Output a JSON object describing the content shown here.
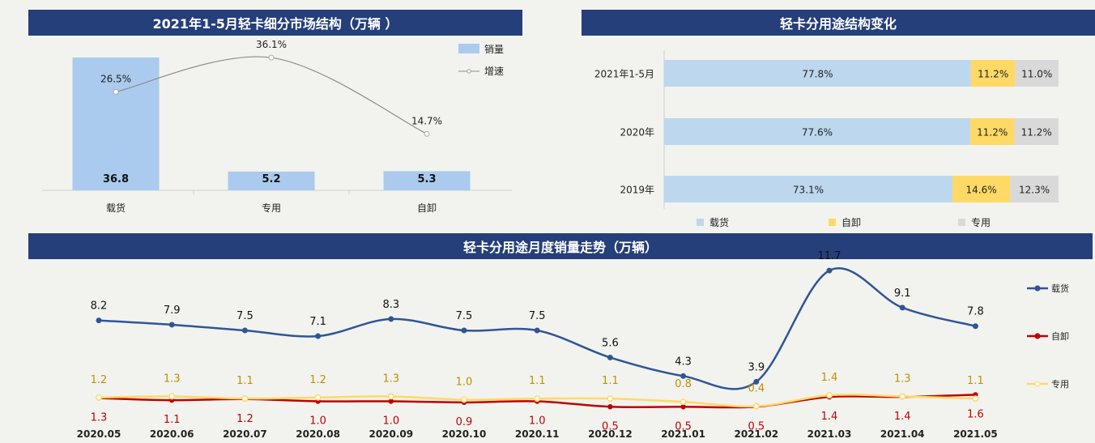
{
  "chart_data": [
    {
      "type": "bar",
      "title": "2021年1-5月轻卡细分市场结构（万辆 ）",
      "categories": [
        "载货",
        "专用",
        "自卸"
      ],
      "series": [
        {
          "name": "销量",
          "values": [
            36.8,
            5.2,
            5.3
          ],
          "labels": [
            "36.8",
            "5.2",
            "5.3"
          ],
          "color": "#aacbee"
        },
        {
          "name": "增速",
          "type": "line",
          "values": [
            26.5,
            36.1,
            14.7
          ],
          "labels": [
            "26.5%",
            "36.1%",
            "14.7%"
          ],
          "color": "#8c8c8c"
        }
      ],
      "legend": "top-right"
    },
    {
      "type": "bar",
      "stacked": true,
      "orientation": "horizontal",
      "title": "轻卡分用途结构变化",
      "categories": [
        "2021年1-5月",
        "2020年",
        "2019年"
      ],
      "series": [
        {
          "name": "载货",
          "values": [
            77.8,
            77.6,
            73.1
          ],
          "labels": [
            "77.8%",
            "77.6%",
            "73.1%"
          ],
          "color": "#bdd7ee"
        },
        {
          "name": "自卸",
          "values": [
            11.2,
            11.2,
            14.6
          ],
          "labels": [
            "11.2%",
            "11.2%",
            "14.6%"
          ],
          "color": "#ffd966"
        },
        {
          "name": "专用",
          "values": [
            11.0,
            11.2,
            12.3
          ],
          "labels": [
            "11.0%",
            "11.2%",
            "12.3%"
          ],
          "color": "#d9d9d9"
        }
      ],
      "legend": "bottom"
    },
    {
      "type": "line",
      "title": "轻卡分用途月度销量走势（万辆）",
      "categories": [
        "2020.05",
        "2020.06",
        "2020.07",
        "2020.08",
        "2020.09",
        "2020.10",
        "2020.11",
        "2020.12",
        "2021.01",
        "2021.02",
        "2021.03",
        "2021.04",
        "2021.05"
      ],
      "series": [
        {
          "name": "载货",
          "values": [
            8.2,
            7.9,
            7.5,
            7.1,
            8.3,
            7.5,
            7.5,
            5.6,
            4.3,
            3.9,
            11.7,
            9.1,
            7.8
          ],
          "labels": [
            "8.2",
            "7.9",
            "7.5",
            "7.1",
            "8.3",
            "7.5",
            "7.5",
            "5.6",
            "4.3",
            "3.9",
            "11.7",
            "9.1",
            "7.8"
          ],
          "color": "#2f5597"
        },
        {
          "name": "自卸",
          "values": [
            1.3,
            1.1,
            1.2,
            1.0,
            1.0,
            0.9,
            1.0,
            0.5,
            0.5,
            0.5,
            1.4,
            1.4,
            1.6
          ],
          "labels": [
            "1.3",
            "1.1",
            "1.2",
            "1.0",
            "1.0",
            "0.9",
            "1.0",
            "0.5",
            "0.5",
            "0.5",
            "1.4",
            "1.4",
            "1.6"
          ],
          "color": "#c00000",
          "label_color": "#c00000"
        },
        {
          "name": "专用",
          "values": [
            1.2,
            1.3,
            1.1,
            1.2,
            1.3,
            1.0,
            1.1,
            1.1,
            0.8,
            0.4,
            1.4,
            1.3,
            1.1
          ],
          "labels": [
            "1.2",
            "1.3",
            "1.1",
            "1.2",
            "1.3",
            "1.0",
            "1.1",
            "1.1",
            "0.8",
            "0.4",
            "1.4",
            "1.3",
            "1.1"
          ],
          "color": "#ffd966",
          "label_color": "#bf9000"
        }
      ],
      "legend": "right"
    }
  ]
}
